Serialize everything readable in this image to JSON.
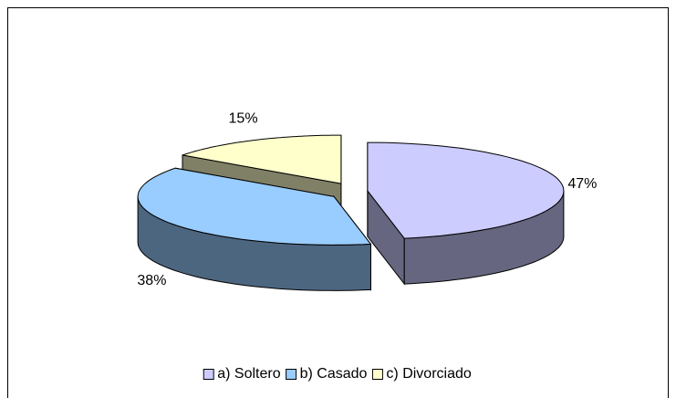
{
  "chart_data": {
    "type": "pie3d",
    "categories": [
      "a) Soltero",
      "b) Casado",
      "c) Divorciado"
    ],
    "values": [
      47,
      38,
      15
    ],
    "value_labels": [
      "47%",
      "38%",
      "15%"
    ],
    "colors": [
      "#ccccff",
      "#99ccff",
      "#ffffcc"
    ],
    "side_colors": [
      "#666680",
      "#4d6680",
      "#808066"
    ],
    "legend": "bottom"
  }
}
